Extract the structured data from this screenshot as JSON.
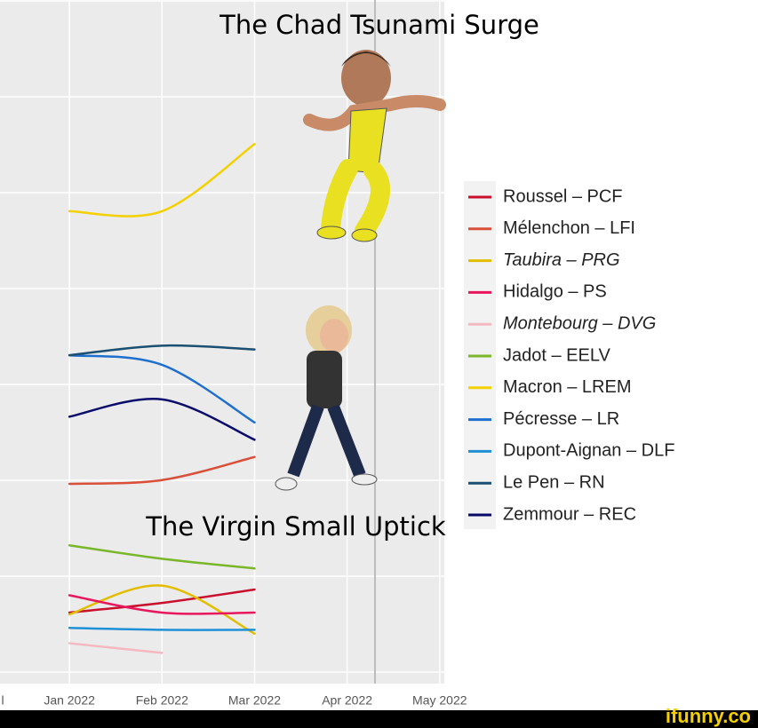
{
  "chart_data": {
    "type": "line",
    "title": "The Chad Tsunami Surge",
    "subtitle": "The Virgin Small Uptick",
    "watermark": "ifunny.co",
    "x": [
      1,
      2,
      3
    ],
    "xlim": [
      0.25,
      5.05
    ],
    "xticks": [
      {
        "value": 0,
        "label": "l"
      },
      {
        "value": 1,
        "label": "Jan 2022"
      },
      {
        "value": 2,
        "label": "Feb 2022"
      },
      {
        "value": 3,
        "label": "Mar 2022"
      },
      {
        "value": 4,
        "label": "Apr 2022"
      },
      {
        "value": 5,
        "label": "May 2022"
      }
    ],
    "ylim": [
      0,
      35
    ],
    "grid": true,
    "series": [
      {
        "name": "Roussel – PCF",
        "color": "#c8102e",
        "values": [
          3.1,
          3.6,
          4.3
        ]
      },
      {
        "name": "Mélenchon – LFI",
        "color": "#d9503a",
        "values": [
          9.8,
          10,
          11.2
        ]
      },
      {
        "name": "Taubira – PRG",
        "color": "#e3bd00",
        "italic": true,
        "values": [
          3,
          4.5,
          2
        ]
      },
      {
        "name": "Hidalgo – PS",
        "color": "#e8175d",
        "values": [
          4,
          3.1,
          3.1
        ]
      },
      {
        "name": "Montebourg – DVG",
        "color": "#f6b8c0",
        "italic": true,
        "values": [
          1.5,
          1,
          null
        ]
      },
      {
        "name": "Jadot – EELV",
        "color": "#7ab62a",
        "values": [
          6.6,
          5.9,
          5.4
        ]
      },
      {
        "name": "Macron – LREM",
        "color": "#f5d000",
        "values": [
          24,
          24,
          27.5
        ]
      },
      {
        "name": "Pécresse – LR",
        "color": "#1f6fcf",
        "values": [
          16.5,
          16,
          13
        ]
      },
      {
        "name": "Dupont-Aignan – DLF",
        "color": "#1e90d6",
        "values": [
          2.3,
          2.2,
          2.2
        ]
      },
      {
        "name": "Le Pen – RN",
        "color": "#1b4f72",
        "values": [
          16.5,
          17,
          16.8
        ]
      },
      {
        "name": "Zemmour – REC",
        "color": "#0b0b6b",
        "values": [
          13.3,
          14.2,
          12.1
        ]
      }
    ]
  }
}
